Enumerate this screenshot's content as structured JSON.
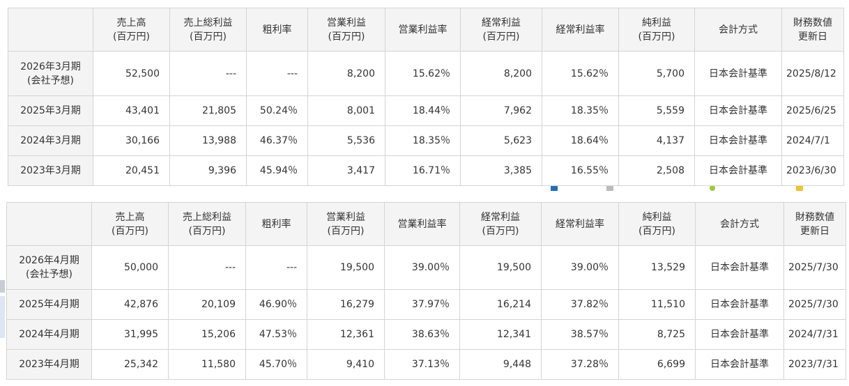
{
  "headers": {
    "corner": "",
    "sales": [
      "売上高",
      "(百万円)"
    ],
    "gross_profit": [
      "売上総利益",
      "(百万円)"
    ],
    "gross_margin": [
      "粗利率"
    ],
    "operating_profit": [
      "営業利益",
      "(百万円)"
    ],
    "operating_margin": [
      "営業利益率"
    ],
    "ordinary_profit": [
      "経常利益",
      "(百万円)"
    ],
    "ordinary_margin": [
      "経常利益率"
    ],
    "net_profit": [
      "純利益",
      "(百万円)"
    ],
    "accounting": [
      "会計方式"
    ],
    "updated": [
      "財務数値",
      "更新日"
    ]
  },
  "table1": {
    "rows": [
      {
        "period": [
          "2026年3月期",
          "(会社予想)"
        ],
        "sales": "52,500",
        "gross_profit": "---",
        "gross_margin": "---",
        "operating_profit": "8,200",
        "operating_margin": "15.62％",
        "ordinary_profit": "8,200",
        "ordinary_margin": "15.62％",
        "net_profit": "5,700",
        "accounting": "日本会計基準",
        "updated": "2025/8/12"
      },
      {
        "period": [
          "2025年3月期"
        ],
        "sales": "43,401",
        "gross_profit": "21,805",
        "gross_margin": "50.24％",
        "operating_profit": "8,001",
        "operating_margin": "18.44％",
        "ordinary_profit": "7,962",
        "ordinary_margin": "18.35％",
        "net_profit": "5,559",
        "accounting": "日本会計基準",
        "updated": "2025/6/25"
      },
      {
        "period": [
          "2024年3月期"
        ],
        "sales": "30,166",
        "gross_profit": "13,988",
        "gross_margin": "46.37％",
        "operating_profit": "5,536",
        "operating_margin": "18.35％",
        "ordinary_profit": "5,623",
        "ordinary_margin": "18.64％",
        "net_profit": "4,137",
        "accounting": "日本会計基準",
        "updated": "2024/7/1"
      },
      {
        "period": [
          "2023年3月期"
        ],
        "sales": "20,451",
        "gross_profit": "9,396",
        "gross_margin": "45.94％",
        "operating_profit": "3,417",
        "operating_margin": "16.71％",
        "ordinary_profit": "3,385",
        "ordinary_margin": "16.55％",
        "net_profit": "2,508",
        "accounting": "日本会計基準",
        "updated": "2023/6/30"
      }
    ]
  },
  "table2": {
    "rows": [
      {
        "period": [
          "2026年4月期",
          "(会社予想)"
        ],
        "sales": "50,000",
        "gross_profit": "---",
        "gross_margin": "---",
        "operating_profit": "19,500",
        "operating_margin": "39.00％",
        "ordinary_profit": "19,500",
        "ordinary_margin": "39.00％",
        "net_profit": "13,529",
        "accounting": "日本会計基準",
        "updated": "2025/7/30"
      },
      {
        "period": [
          "2025年4月期"
        ],
        "sales": "42,876",
        "gross_profit": "20,109",
        "gross_margin": "46.90％",
        "operating_profit": "16,279",
        "operating_margin": "37.97％",
        "ordinary_profit": "16,214",
        "ordinary_margin": "37.82％",
        "net_profit": "11,510",
        "accounting": "日本会計基準",
        "updated": "2025/7/30"
      },
      {
        "period": [
          "2024年4月期"
        ],
        "sales": "31,995",
        "gross_profit": "15,206",
        "gross_margin": "47.53％",
        "operating_profit": "12,361",
        "operating_margin": "38.63％",
        "ordinary_profit": "12,341",
        "ordinary_margin": "38.57％",
        "net_profit": "8,725",
        "accounting": "日本会計基準",
        "updated": "2024/7/31"
      },
      {
        "period": [
          "2023年4月期"
        ],
        "sales": "25,342",
        "gross_profit": "11,580",
        "gross_margin": "45.70％",
        "operating_profit": "9,410",
        "operating_margin": "37.13％",
        "ordinary_profit": "9,448",
        "ordinary_margin": "37.28％",
        "net_profit": "6,699",
        "accounting": "日本会計基準",
        "updated": "2023/7/31"
      }
    ]
  },
  "legend_partial": {
    "items": [
      {
        "swatch_color": "#1f6fb2"
      },
      {
        "swatch_color": "#bbbbbb"
      },
      {
        "swatch_color": "#9bc93b"
      },
      {
        "swatch_color": "#f2c232"
      }
    ]
  },
  "colors": {
    "header_bg": "#f4f4f4",
    "border": "#d4d4d4",
    "text": "#333333"
  }
}
